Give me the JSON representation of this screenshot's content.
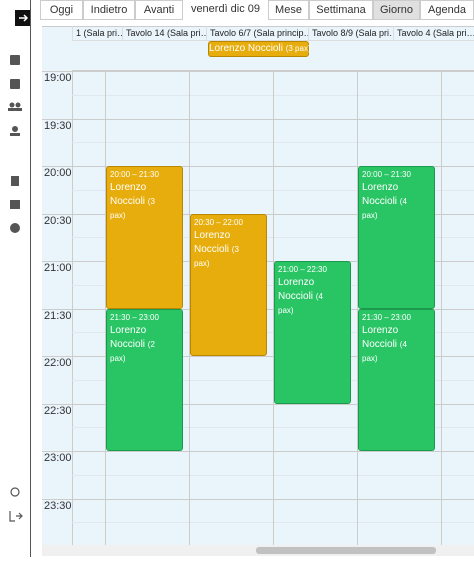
{
  "toolbar": {
    "buttons": [
      "Oggi",
      "Indietro",
      "Avanti"
    ],
    "date_label": "venerdì dic 09",
    "views": [
      "Mese",
      "Settimana",
      "Giorno",
      "Agenda"
    ],
    "active_view": "Giorno"
  },
  "columns": [
    {
      "header": "1 (Sala pri…",
      "events": []
    },
    {
      "header": "Tavolo 14 (Sala pri…",
      "events": [
        {
          "time": "20:00 – 21:30",
          "name": "Lorenzo Noccioli",
          "pax": "(3 pax)",
          "status": "orange"
        },
        {
          "time": "21:30 – 23:00",
          "name": "Lorenzo Noccioli",
          "pax": "(2 pax)",
          "status": "green"
        }
      ]
    },
    {
      "header": "Tavolo 6/7 (Sala princip…",
      "events": [
        {
          "time": "20:30 – 22:00",
          "name": "Lorenzo Noccioli",
          "pax": "(3 pax)",
          "status": "orange"
        }
      ]
    },
    {
      "header": "Tavolo 8/9 (Sala pri…",
      "events": [
        {
          "time": "21:00 – 22:30",
          "name": "Lorenzo Noccioli",
          "pax": "(4 pax)",
          "status": "green"
        }
      ]
    },
    {
      "header": "Tavolo 4 (Sala pri…",
      "events": [
        {
          "time": "20:00 – 21:30",
          "name": "Lorenzo Noccioli",
          "pax": "(4 pax)",
          "status": "green"
        },
        {
          "time": "21:30 – 23:00",
          "name": "Lorenzo Noccioli",
          "pax": "(4 pax)",
          "status": "green"
        }
      ]
    }
  ],
  "all_day_event": {
    "name": "Lorenzo Noccioli",
    "pax": "(3 pax)"
  },
  "times": [
    "19:00",
    "19:30",
    "20:00",
    "20:30",
    "21:00",
    "21:30",
    "22:00",
    "22:30",
    "23:00",
    "23:30"
  ]
}
